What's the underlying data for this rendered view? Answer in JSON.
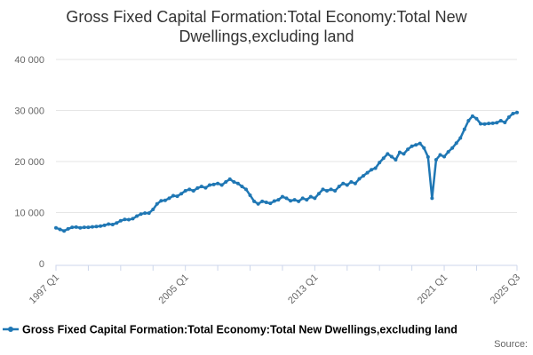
{
  "title": {
    "line1": "Gross Fixed Capital Formation:Total Economy:Total New",
    "line2": "Dwellings,excluding land"
  },
  "legend": {
    "label": "Gross Fixed Capital Formation:Total Economy:Total New Dwellings,excluding land"
  },
  "source_label": "Source:",
  "colors": {
    "series": "#1f77b4",
    "grid": "#e6e6e6",
    "axis": "#ccd6eb",
    "tick_label": "#666666",
    "title": "#333333"
  },
  "chart_data": {
    "type": "line",
    "title": "Gross Fixed Capital Formation:Total Economy:Total New Dwellings,excluding land",
    "xlabel": "",
    "ylabel": "",
    "ylim": [
      0,
      40000
    ],
    "grid": true,
    "legend_position": "bottom-left",
    "marker": "dot",
    "x_start": {
      "year": 1997,
      "quarter": 1
    },
    "x_end": {
      "year": 2025,
      "quarter": 3
    },
    "x_tick_every_quarters": 8,
    "x_tick_labels": [
      "1997 Q1",
      "2005 Q1",
      "2013 Q1",
      "2021 Q1",
      "2025 Q3"
    ],
    "x_labeled_quarter_indices": [
      0,
      32,
      64,
      96,
      114
    ],
    "y_ticks": [
      0,
      10000,
      20000,
      30000,
      40000
    ],
    "y_tick_labels": [
      "0",
      "10 000",
      "20 000",
      "30 000",
      "40 000"
    ],
    "series": [
      {
        "name": "Gross Fixed Capital Formation:Total Economy:Total New Dwellings,excluding land",
        "values": [
          7000,
          6700,
          6400,
          6800,
          7100,
          7150,
          7000,
          7100,
          7100,
          7200,
          7250,
          7350,
          7500,
          7750,
          7650,
          7950,
          8400,
          8650,
          8600,
          8800,
          9300,
          9700,
          9900,
          9900,
          10600,
          11700,
          12300,
          12400,
          12800,
          13300,
          13200,
          13700,
          14250,
          14550,
          14250,
          14800,
          15100,
          14850,
          15400,
          15500,
          15700,
          15400,
          16000,
          16550,
          16000,
          15700,
          15100,
          14550,
          13400,
          12200,
          11700,
          12200,
          12000,
          11800,
          12250,
          12500,
          13100,
          12800,
          12300,
          12500,
          12200,
          12800,
          12500,
          13100,
          12800,
          13700,
          14550,
          14250,
          14550,
          14250,
          15100,
          15700,
          15400,
          16000,
          15700,
          16600,
          17200,
          17800,
          18400,
          18700,
          19800,
          20650,
          21500,
          20950,
          20350,
          21800,
          21500,
          22400,
          23000,
          23250,
          23550,
          22650,
          20900,
          12800,
          20350,
          21300,
          20950,
          21900,
          22650,
          23600,
          24600,
          26300,
          28000,
          28900,
          28400,
          27400,
          27350,
          27450,
          27500,
          27600,
          28000,
          27650,
          28700,
          29400,
          29600
        ]
      }
    ]
  }
}
